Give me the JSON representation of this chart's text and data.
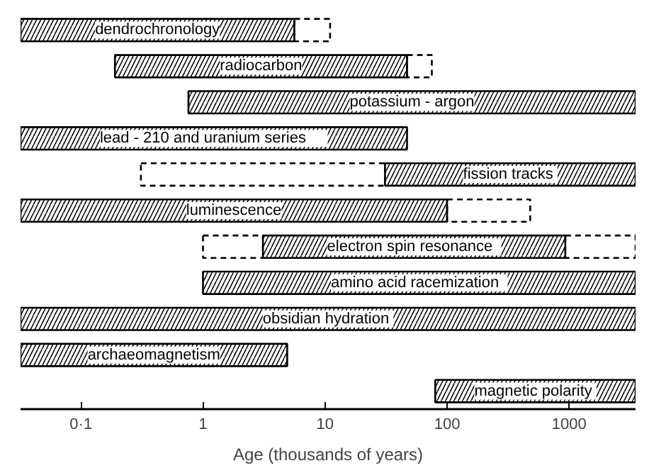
{
  "chart_data": {
    "type": "bar",
    "orientation": "horizontal",
    "log": "x",
    "grid": false,
    "tick_labels": "x",
    "xlabel": "Age (thousands of years)",
    "categories": [
      "dendrochronology",
      "radiocarbon",
      "potassium - argon",
      "lead - 210   and   uranium  series",
      "fission  tracks",
      "luminescence",
      "electron  spin  resonance",
      "amino  acid  racemization",
      "obsidian  hydration",
      "archaeomagnetism",
      "magnetic  polarity"
    ],
    "series": [
      {
        "color": "#000000",
        "line_style": "dashed",
        "base": [
          null,
          null,
          null,
          null,
          0.31,
          null,
          1,
          null,
          null,
          null,
          null
        ],
        "values": [
          null,
          null,
          null,
          null,
          30.69,
          null,
          2.1,
          null,
          null,
          null,
          null
        ]
      },
      {
        "color": "#000000",
        "line_style": "solid",
        "base": [
          0.032,
          0.19,
          0.76,
          0.032,
          31,
          0.032,
          3.1,
          1,
          0.032,
          0.032,
          80
        ],
        "values": [
          5.568,
          46.81,
          3499.24,
          46.968,
          3469,
          99.968,
          926.9,
          3499,
          3499.968,
          4.868,
          3420
        ]
      },
      {
        "color": "#000000",
        "line_style": "dashed",
        "base": [
          5.6,
          47,
          null,
          null,
          null,
          100,
          930,
          null,
          null,
          null,
          null
        ],
        "values": [
          5.4,
          28,
          null,
          null,
          null,
          380,
          2570,
          null,
          null,
          null,
          null
        ]
      }
    ],
    "xlim": [
      0.032,
      3500
    ],
    "xticks": [
      {
        "value": 0.1,
        "label": "0·1"
      },
      1,
      10,
      100,
      1000
    ]
  }
}
